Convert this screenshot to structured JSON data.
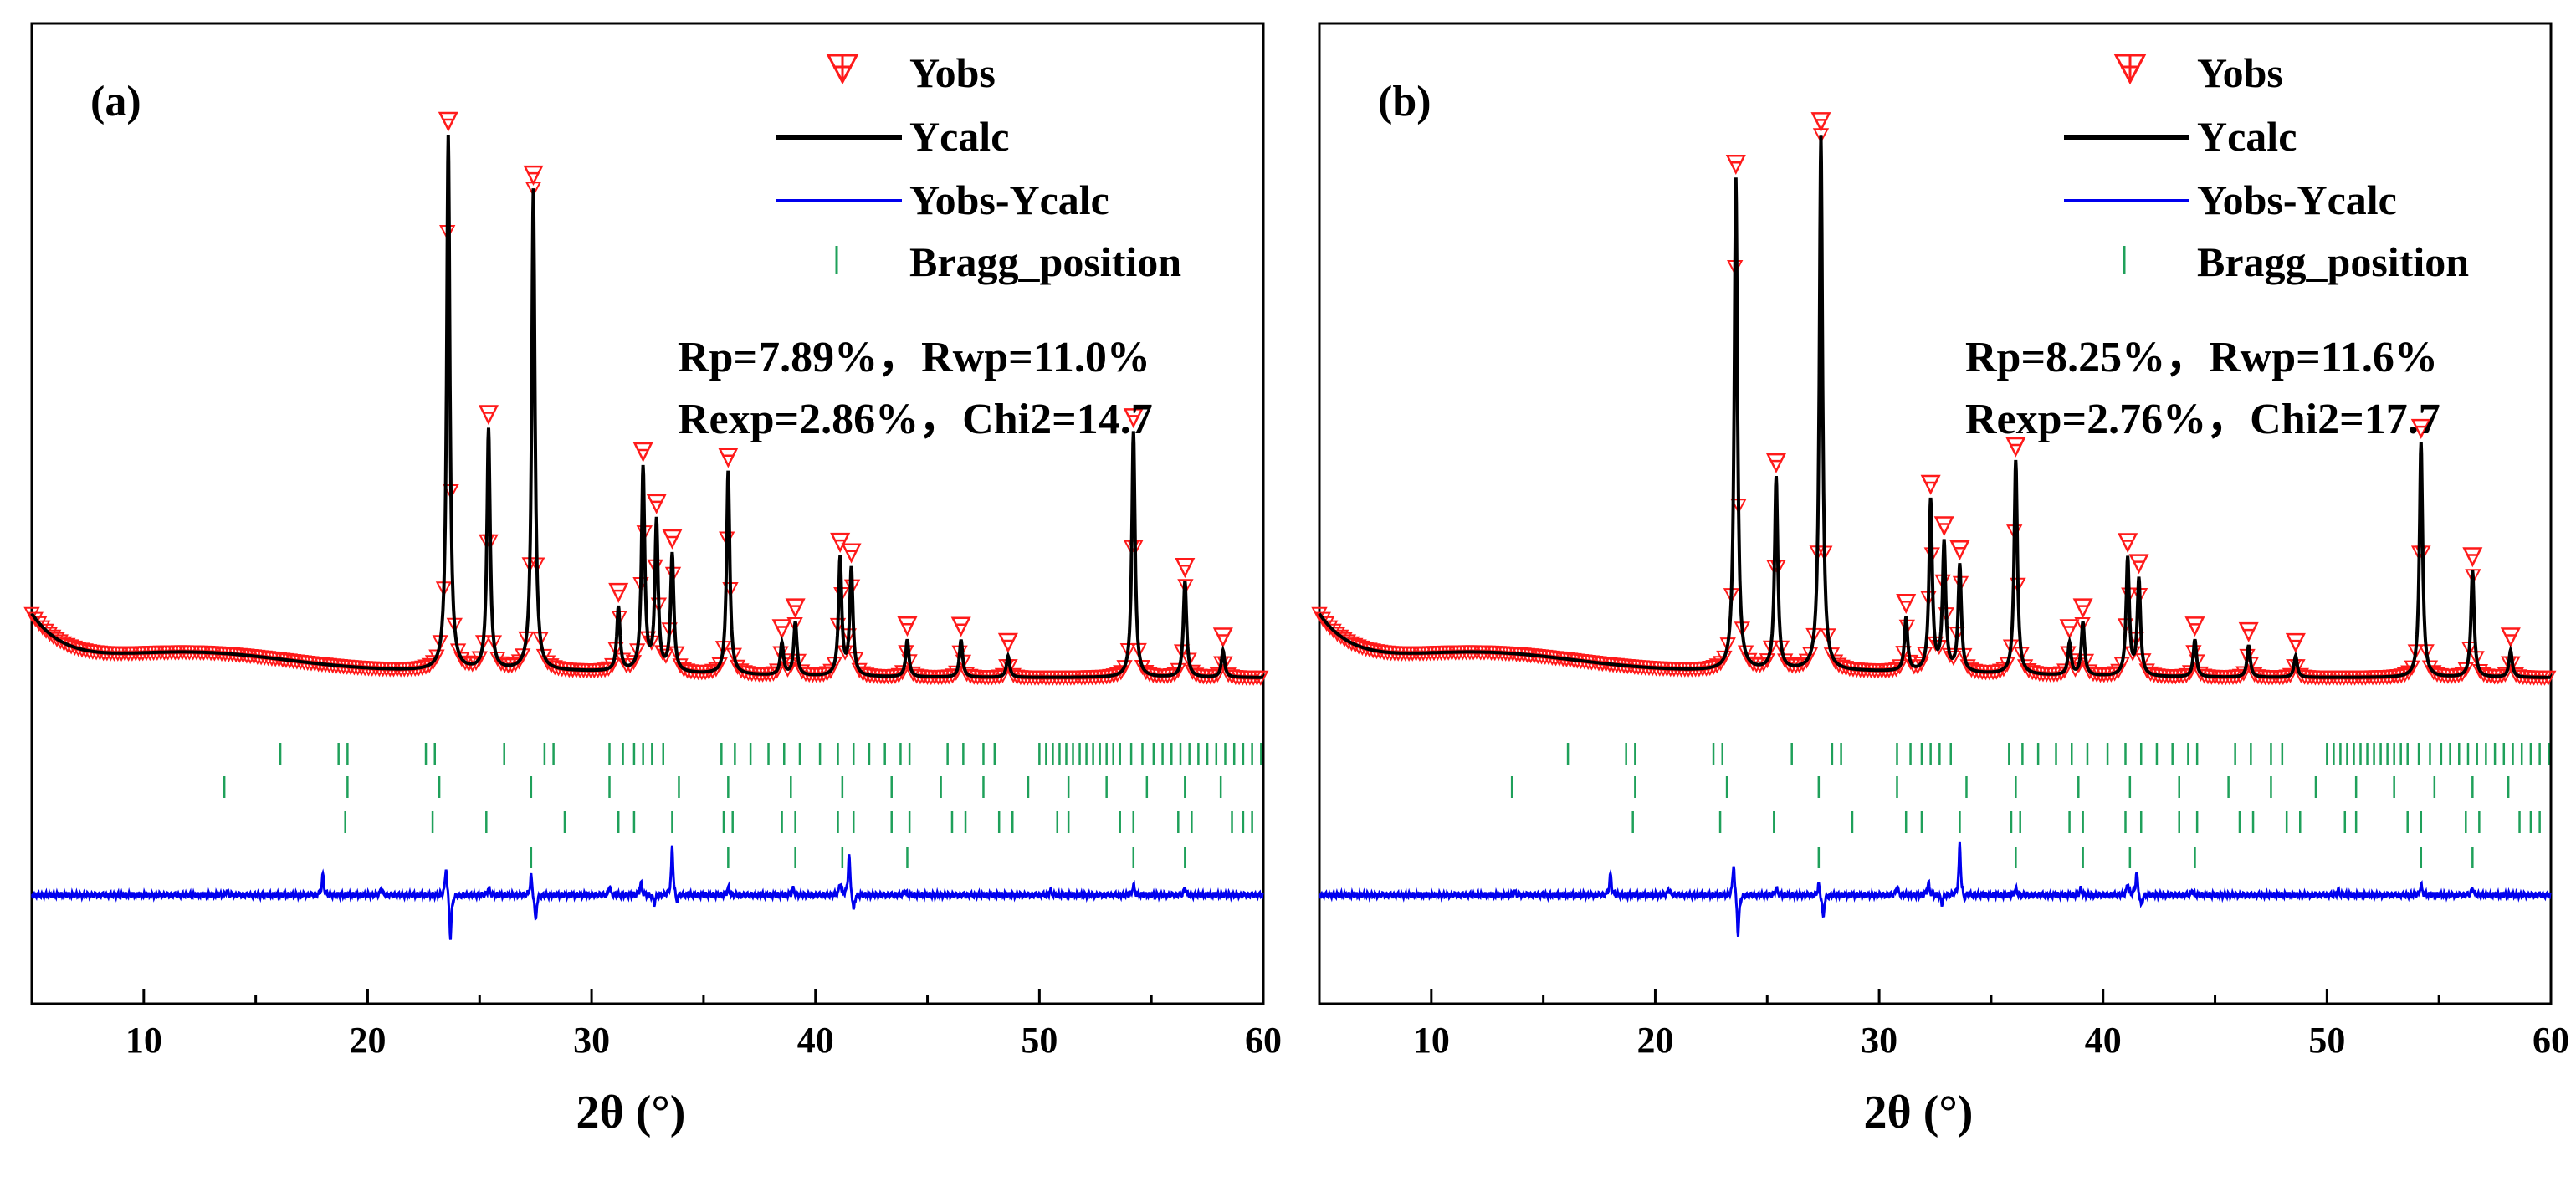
{
  "chart_data": [
    {
      "type": "line",
      "panel_label": "(a)",
      "xlabel": "2θ (°)",
      "ylabel": "",
      "xlim": [
        5,
        60
      ],
      "xticks": [
        "10",
        "20",
        "30",
        "40",
        "50",
        "60"
      ],
      "legend": {
        "position": "top-right",
        "entries": [
          "Yobs",
          "Ycalc",
          "Yobs-Ycalc",
          "Bragg_position"
        ]
      },
      "stats": [
        "Rp=7.89%，Rwp=11.0%",
        "Rexp=2.86%，Chi2=14.7"
      ],
      "peaks": [
        {
          "two_theta": 23.6,
          "intensity": 1.0
        },
        {
          "two_theta": 25.4,
          "intensity": 0.45
        },
        {
          "two_theta": 27.4,
          "intensity": 0.9
        },
        {
          "two_theta": 31.2,
          "intensity": 0.12
        },
        {
          "two_theta": 32.3,
          "intensity": 0.38
        },
        {
          "two_theta": 32.9,
          "intensity": 0.28
        },
        {
          "two_theta": 33.6,
          "intensity": 0.22
        },
        {
          "two_theta": 36.1,
          "intensity": 0.38
        },
        {
          "two_theta": 38.5,
          "intensity": 0.06
        },
        {
          "two_theta": 39.1,
          "intensity": 0.1
        },
        {
          "two_theta": 41.1,
          "intensity": 0.22
        },
        {
          "two_theta": 41.6,
          "intensity": 0.2
        },
        {
          "two_theta": 44.1,
          "intensity": 0.07
        },
        {
          "two_theta": 46.5,
          "intensity": 0.07
        },
        {
          "two_theta": 48.6,
          "intensity": 0.04
        },
        {
          "two_theta": 54.2,
          "intensity": 0.46
        },
        {
          "two_theta": 56.5,
          "intensity": 0.18
        },
        {
          "two_theta": 58.2,
          "intensity": 0.05
        }
      ],
      "bragg_rows": [
        [
          16.1,
          18.7,
          19.1,
          22.6,
          23.0,
          26.1,
          27.9,
          28.3,
          30.8,
          31.4,
          31.9,
          32.3,
          32.7,
          33.2,
          35.8,
          36.4,
          37.1,
          37.9,
          38.6,
          39.3,
          40.2,
          41.0,
          41.7,
          42.4,
          43.1,
          43.8,
          44.2,
          45.9,
          46.6,
          47.5,
          48.0,
          50.0,
          50.3,
          50.6,
          50.9,
          51.2,
          51.5,
          51.8,
          52.1,
          52.4,
          52.7,
          53.0,
          53.3,
          53.6,
          54.1,
          54.6,
          55.1,
          55.5,
          55.9,
          56.3,
          56.7,
          57.1,
          57.5,
          57.9,
          58.3,
          58.7,
          59.1,
          59.5,
          59.9
        ],
        [
          13.6,
          19.1,
          23.2,
          27.3,
          30.8,
          33.9,
          36.1,
          38.9,
          41.2,
          43.4,
          45.6,
          47.5,
          49.5,
          51.3,
          53.0,
          54.8,
          56.5,
          58.1
        ],
        [
          19.0,
          22.9,
          25.3,
          28.8,
          31.2,
          31.9,
          33.6,
          35.9,
          36.3,
          38.5,
          39.1,
          41.0,
          41.7,
          43.4,
          44.2,
          46.1,
          46.7,
          48.2,
          48.8,
          50.8,
          51.3,
          53.6,
          54.2,
          56.2,
          56.8,
          58.6,
          59.1,
          59.5
        ],
        [
          27.3,
          36.1,
          39.1,
          41.2,
          44.1,
          54.2,
          56.5
        ]
      ],
      "diff_spikes": [
        {
          "two_theta": 13.7,
          "value": 3
        },
        {
          "two_theta": 18.0,
          "value": 14
        },
        {
          "two_theta": 20.6,
          "value": 4
        },
        {
          "two_theta": 23.5,
          "value": 20
        },
        {
          "two_theta": 23.7,
          "value": -30
        },
        {
          "two_theta": 25.4,
          "value": 5
        },
        {
          "two_theta": 27.3,
          "value": 14
        },
        {
          "two_theta": 27.5,
          "value": -18
        },
        {
          "two_theta": 30.8,
          "value": 6
        },
        {
          "two_theta": 32.2,
          "value": 8
        },
        {
          "two_theta": 32.8,
          "value": -6
        },
        {
          "two_theta": 33.6,
          "value": 32
        },
        {
          "two_theta": 33.8,
          "value": -6
        },
        {
          "two_theta": 36.1,
          "value": 5
        },
        {
          "two_theta": 39.0,
          "value": 4
        },
        {
          "two_theta": 41.1,
          "value": 8
        },
        {
          "two_theta": 41.5,
          "value": 28
        },
        {
          "two_theta": 41.7,
          "value": -12
        },
        {
          "two_theta": 44.0,
          "value": 3
        },
        {
          "two_theta": 50.5,
          "value": 3
        },
        {
          "two_theta": 54.2,
          "value": 7
        },
        {
          "two_theta": 56.5,
          "value": 5
        }
      ]
    },
    {
      "type": "line",
      "panel_label": "(b)",
      "xlabel": "2θ (°)",
      "ylabel": "",
      "xlim": [
        5,
        60
      ],
      "xticks": [
        "10",
        "20",
        "30",
        "40",
        "50",
        "60"
      ],
      "legend": {
        "position": "top-right",
        "entries": [
          "Yobs",
          "Ycalc",
          "Yobs-Ycalc",
          "Bragg_position"
        ]
      },
      "stats": [
        "Rp=8.25%，Rwp=11.6%",
        "Rexp=2.76%，Chi2=17.7"
      ],
      "peaks": [
        {
          "two_theta": 23.6,
          "intensity": 0.92
        },
        {
          "two_theta": 25.4,
          "intensity": 0.36
        },
        {
          "two_theta": 27.4,
          "intensity": 1.0
        },
        {
          "two_theta": 31.2,
          "intensity": 0.1
        },
        {
          "two_theta": 32.3,
          "intensity": 0.32
        },
        {
          "two_theta": 32.9,
          "intensity": 0.24
        },
        {
          "two_theta": 33.6,
          "intensity": 0.2
        },
        {
          "two_theta": 36.1,
          "intensity": 0.4
        },
        {
          "two_theta": 38.5,
          "intensity": 0.06
        },
        {
          "two_theta": 39.1,
          "intensity": 0.1
        },
        {
          "two_theta": 41.1,
          "intensity": 0.22
        },
        {
          "two_theta": 41.6,
          "intensity": 0.18
        },
        {
          "two_theta": 44.1,
          "intensity": 0.07
        },
        {
          "two_theta": 46.5,
          "intensity": 0.06
        },
        {
          "two_theta": 48.6,
          "intensity": 0.04
        },
        {
          "two_theta": 54.2,
          "intensity": 0.44
        },
        {
          "two_theta": 56.5,
          "intensity": 0.2
        },
        {
          "two_theta": 58.2,
          "intensity": 0.05
        }
      ],
      "bragg_rows": [
        [
          16.1,
          18.7,
          19.1,
          22.6,
          23.0,
          26.1,
          27.9,
          28.3,
          30.8,
          31.4,
          31.9,
          32.3,
          32.7,
          33.2,
          35.8,
          36.4,
          37.1,
          37.9,
          38.6,
          39.3,
          40.2,
          41.0,
          41.7,
          42.4,
          43.1,
          43.8,
          44.2,
          45.9,
          46.6,
          47.5,
          48.0,
          50.0,
          50.3,
          50.6,
          50.9,
          51.2,
          51.5,
          51.8,
          52.1,
          52.4,
          52.7,
          53.0,
          53.3,
          53.6,
          54.1,
          54.6,
          55.1,
          55.5,
          55.9,
          56.3,
          56.7,
          57.1,
          57.5,
          57.9,
          58.3,
          58.7,
          59.1,
          59.5,
          59.9
        ],
        [
          13.6,
          19.1,
          23.2,
          27.3,
          30.8,
          33.9,
          36.1,
          38.9,
          41.2,
          43.4,
          45.6,
          47.5,
          49.5,
          51.3,
          53.0,
          54.8,
          56.5,
          58.1
        ],
        [
          19.0,
          22.9,
          25.3,
          28.8,
          31.2,
          31.9,
          33.6,
          35.9,
          36.3,
          38.5,
          39.1,
          41.0,
          41.7,
          43.4,
          44.2,
          46.1,
          46.7,
          48.2,
          48.8,
          50.8,
          51.3,
          53.6,
          54.2,
          56.2,
          56.8,
          58.6,
          59.1,
          59.5
        ],
        [
          27.3,
          36.1,
          39.1,
          41.2,
          44.1,
          54.2,
          56.5
        ]
      ],
      "diff_spikes": [
        {
          "two_theta": 13.7,
          "value": 3
        },
        {
          "two_theta": 18.0,
          "value": 14
        },
        {
          "two_theta": 20.6,
          "value": 4
        },
        {
          "two_theta": 23.5,
          "value": 22
        },
        {
          "two_theta": 23.7,
          "value": -28
        },
        {
          "two_theta": 25.4,
          "value": 5
        },
        {
          "two_theta": 27.3,
          "value": 8
        },
        {
          "two_theta": 27.5,
          "value": -16
        },
        {
          "two_theta": 30.8,
          "value": 6
        },
        {
          "two_theta": 32.2,
          "value": 8
        },
        {
          "two_theta": 32.8,
          "value": -6
        },
        {
          "two_theta": 33.6,
          "value": 34
        },
        {
          "two_theta": 33.8,
          "value": -4
        },
        {
          "two_theta": 36.1,
          "value": 4
        },
        {
          "two_theta": 39.0,
          "value": 4
        },
        {
          "two_theta": 41.1,
          "value": 8
        },
        {
          "two_theta": 41.5,
          "value": 16
        },
        {
          "two_theta": 41.7,
          "value": -8
        },
        {
          "two_theta": 44.0,
          "value": 3
        },
        {
          "two_theta": 50.5,
          "value": 3
        },
        {
          "two_theta": 54.2,
          "value": 7
        },
        {
          "two_theta": 56.5,
          "value": 5
        }
      ]
    }
  ],
  "colors": {
    "yobs": "#ff1a1a",
    "ycalc": "#000000",
    "diff": "#0000ee",
    "bragg": "#1fa05a"
  }
}
